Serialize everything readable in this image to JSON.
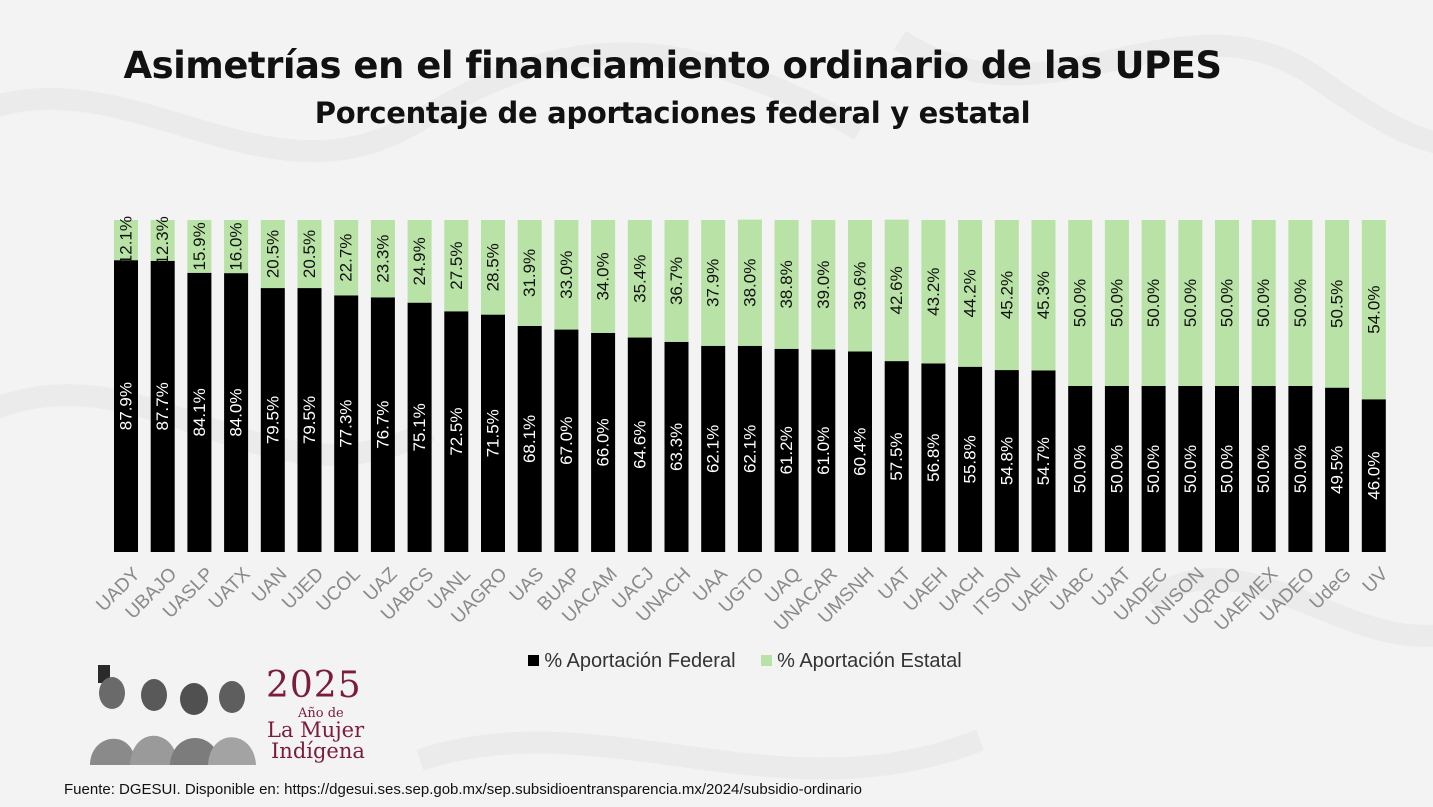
{
  "title": "Asimetrías en el financiamiento ordinario de las UPES",
  "subtitle": "Porcentaje de aportaciones federal y estatal",
  "colors": {
    "federal": "#000000",
    "estatal": "#b9e2a6",
    "brand": "#7a1d3a"
  },
  "legend": {
    "federal": "% Aportación Federal",
    "estatal": "% Aportación Estatal"
  },
  "logo": {
    "year": "2025",
    "line1": "Año de",
    "line2": "La Mujer",
    "line3": "Indígena"
  },
  "source": "Fuente: DGESUI. Disponible en: https://dgesui.ses.sep.gob.mx/sep.subsidioentransparencia.mx/2024/subsidio-ordinario",
  "chart_data": {
    "type": "bar",
    "stacked": true,
    "orientation": "vertical",
    "percent_stacked": true,
    "data_labels": "rotated-inside",
    "categories": [
      "UADY",
      "UBAJO",
      "UASLP",
      "UATX",
      "UAN",
      "UJED",
      "UCOL",
      "UAZ",
      "UABCS",
      "UANL",
      "UAGRO",
      "UAS",
      "BUAP",
      "UACAM",
      "UACJ",
      "UNACH",
      "UAA",
      "UGTO",
      "UAQ",
      "UNACAR",
      "UMSNH",
      "UAT",
      "UAEH",
      "UACH",
      "ITSON",
      "UAEM",
      "UABC",
      "UJAT",
      "UADEC",
      "UNISON",
      "UQROO",
      "UAEMEX",
      "UADEO",
      "UdeG",
      "UV"
    ],
    "series": [
      {
        "name": "% Aportación Federal",
        "values": [
          87.9,
          87.7,
          84.1,
          84.0,
          79.5,
          79.5,
          77.3,
          76.7,
          75.1,
          72.5,
          71.5,
          68.1,
          67.0,
          66.0,
          64.6,
          63.3,
          62.1,
          62.1,
          61.2,
          61.0,
          60.4,
          57.5,
          56.8,
          55.8,
          54.8,
          54.7,
          50.0,
          50.0,
          50.0,
          50.0,
          50.0,
          50.0,
          50.0,
          49.5,
          46.0
        ],
        "labels": [
          "87.9%",
          "87.7%",
          "84.1%",
          "84.0%",
          "79.5%",
          "79.5%",
          "77.3%",
          "76.7%",
          "75.1%",
          "72.5%",
          "71.5%",
          "68.1%",
          "67.0%",
          "66.0%",
          "64.6%",
          "63.3%",
          "62.1%",
          "62.1%",
          "61.2%",
          "61.0%",
          "60.4%",
          "57.5%",
          "56.8%",
          "55.8%",
          "54.8%",
          "54.7%",
          "50.0%",
          "50.0%",
          "50.0%",
          "50.0%",
          "50.0%",
          "50.0%",
          "50.0%",
          "49.5%",
          "46.0%"
        ]
      },
      {
        "name": "% Aportación Estatal",
        "values": [
          12.1,
          12.3,
          15.9,
          16.0,
          20.5,
          20.5,
          22.7,
          23.3,
          24.9,
          27.5,
          28.5,
          31.9,
          33.0,
          34.0,
          35.4,
          36.7,
          37.9,
          38.0,
          38.8,
          39.0,
          39.6,
          42.6,
          43.2,
          44.2,
          45.2,
          45.3,
          50.0,
          50.0,
          50.0,
          50.0,
          50.0,
          50.0,
          50.0,
          50.5,
          54.0
        ],
        "labels": [
          "12.1%",
          "12.3%",
          "15.9%",
          "16.0%",
          "20.5%",
          "20.5%",
          "22.7%",
          "23.3%",
          "24.9%",
          "27.5%",
          "28.5%",
          "31.9%",
          "33.0%",
          "34.0%",
          "35.4%",
          "36.7%",
          "37.9%",
          "38.0%",
          "38.8%",
          "39.0%",
          "39.6%",
          "42.6%",
          "43.2%",
          "44.2%",
          "45.2%",
          "45.3%",
          "50.0%",
          "50.0%",
          "50.0%",
          "50.0%",
          "50.0%",
          "50.0%",
          "50.0%",
          "50.5%",
          "54.0%"
        ]
      }
    ],
    "ylim": [
      0,
      100
    ],
    "legend_position": "bottom",
    "grid": false
  }
}
